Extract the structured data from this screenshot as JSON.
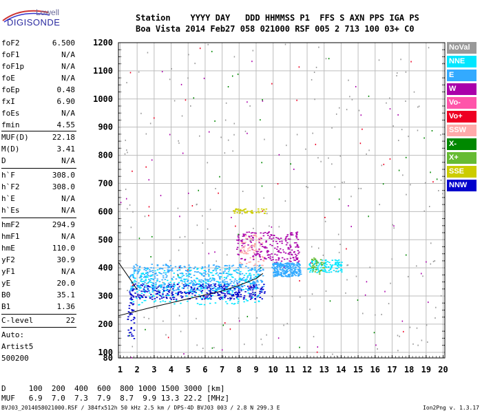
{
  "logo": {
    "top": "Lowell",
    "bottom": "DIGISONDE"
  },
  "header": {
    "line1": "Station    YYYY DAY   DDD HHMMSS P1  FFS S AXN PPS IGA PS",
    "line2": "Boa Vista 2014 Feb27 058 021000 RSF 005 2 713 100 03+ C0"
  },
  "params": [
    {
      "name": "foF2",
      "value": "6.500"
    },
    {
      "name": "foF1",
      "value": "N/A"
    },
    {
      "name": "foF1p",
      "value": "N/A"
    },
    {
      "name": "foE",
      "value": "N/A"
    },
    {
      "name": "foEp",
      "value": "0.48"
    },
    {
      "name": "fxI",
      "value": "6.90"
    },
    {
      "name": "foEs",
      "value": "N/A"
    },
    {
      "name": "fmin",
      "value": "4.55"
    },
    {
      "name": "MUF(D)",
      "value": "22.18"
    },
    {
      "name": "M(D)",
      "value": "3.41"
    },
    {
      "name": "D",
      "value": "N/A"
    },
    {
      "name": "h`F",
      "value": "308.0"
    },
    {
      "name": "h`F2",
      "value": "308.0"
    },
    {
      "name": "h`E",
      "value": "N/A"
    },
    {
      "name": "h`Es",
      "value": "N/A"
    },
    {
      "name": "hmF2",
      "value": "294.9"
    },
    {
      "name": "hmF1",
      "value": "N/A"
    },
    {
      "name": "hmE",
      "value": "110.0"
    },
    {
      "name": "yF2",
      "value": "30.9"
    },
    {
      "name": "yF1",
      "value": "N/A"
    },
    {
      "name": "yE",
      "value": "20.0"
    },
    {
      "name": "B0",
      "value": "35.1"
    },
    {
      "name": "B1",
      "value": "1.36"
    },
    {
      "name": "C-level",
      "value": "22"
    }
  ],
  "auto_lines": [
    "Auto:",
    "Artist5",
    "500200"
  ],
  "legend": [
    {
      "label": "NoVal",
      "color": "#999999"
    },
    {
      "label": "NNE",
      "color": "#00e6ff"
    },
    {
      "label": "E",
      "color": "#33aaff"
    },
    {
      "label": "W",
      "color": "#aa00aa"
    },
    {
      "label": "Vo-",
      "color": "#ff55aa"
    },
    {
      "label": "Vo+",
      "color": "#ee0022"
    },
    {
      "label": "SSW",
      "color": "#ffaaaa"
    },
    {
      "label": "X-",
      "color": "#008800"
    },
    {
      "label": "X+",
      "color": "#66bb33"
    },
    {
      "label": "SSE",
      "color": "#cccc00"
    },
    {
      "label": "NNW",
      "color": "#0000cc"
    }
  ],
  "muf_table": {
    "d_line": "D     100  200  400  600  800 1000 1500 3000 [km]",
    "muf_line": "MUF   6.9  7.0  7.3  7.9  8.7  9.9 13.3 22.2 [MHz]"
  },
  "footer": {
    "left": "BVJ03_2014058021000.RSF / 384fx512h 50 kHz 2.5 km / DPS-4D BVJ03 003 / 2.8 N 299.3 E",
    "right": "Ion2Png v. 1.3.17"
  },
  "chart_data": {
    "type": "scatter",
    "x_ticks": [
      "1",
      "2",
      "3",
      "4",
      "5",
      "6",
      "7",
      "8",
      "9",
      "10",
      "11",
      "12",
      "13",
      "14",
      "15",
      "16",
      "17",
      "18",
      "19",
      "20"
    ],
    "y_ticks": [
      "80",
      "100",
      "200",
      "300",
      "400",
      "500",
      "600",
      "700",
      "800",
      "900",
      "1000",
      "1100",
      "1200"
    ],
    "xlim": [
      0.9,
      20.1
    ],
    "ylim": [
      80,
      1200
    ],
    "xlabel": "",
    "ylabel": "",
    "grid": true,
    "trace_lines": [
      {
        "name": "",
        "points": [
          [
            0.9,
            230
          ],
          [
            3.0,
            262
          ],
          [
            5.0,
            290
          ],
          [
            7.0,
            318
          ],
          [
            8.0,
            338
          ],
          [
            9.0,
            362
          ],
          [
            9.4,
            380
          ]
        ]
      },
      {
        "name": "",
        "points": [
          [
            0.9,
            420
          ],
          [
            1.3,
            385
          ],
          [
            1.7,
            350
          ],
          [
            2.0,
            322
          ]
        ]
      }
    ],
    "clusters": [
      {
        "series": "NNW",
        "x": [
          1.5,
          9.5
        ],
        "y": [
          290,
          345
        ],
        "count": 380
      },
      {
        "series": "E",
        "x": [
          1.5,
          9.4
        ],
        "y": [
          320,
          415
        ],
        "count": 520
      },
      {
        "series": "NNE",
        "x": [
          1.6,
          9.2
        ],
        "y": [
          270,
          400
        ],
        "count": 260
      },
      {
        "series": "W",
        "x": [
          7.8,
          11.5
        ],
        "y": [
          420,
          530
        ],
        "count": 220
      },
      {
        "series": "SSW",
        "x": [
          8.0,
          9.4
        ],
        "y": [
          410,
          520
        ],
        "count": 70
      },
      {
        "series": "E",
        "x": [
          9.9,
          11.6
        ],
        "y": [
          370,
          420
        ],
        "count": 260
      },
      {
        "series": "NNE",
        "x": [
          12.0,
          14.0
        ],
        "y": [
          385,
          430
        ],
        "count": 120
      },
      {
        "series": "SSE",
        "x": [
          7.6,
          9.6
        ],
        "y": [
          595,
          612
        ],
        "count": 45
      },
      {
        "series": "X+",
        "x": [
          12.2,
          13.0
        ],
        "y": [
          380,
          440
        ],
        "count": 40
      },
      {
        "series": "NoVal",
        "x": [
          1.2,
          20.0
        ],
        "y": [
          80,
          1200
        ],
        "count": 220
      },
      {
        "series": "W",
        "x": [
          1.0,
          20.0
        ],
        "y": [
          80,
          1200
        ],
        "count": 50
      },
      {
        "series": "Vo+",
        "x": [
          1.0,
          20.0
        ],
        "y": [
          80,
          1200
        ],
        "count": 35
      },
      {
        "series": "X-",
        "x": [
          1.0,
          20.0
        ],
        "y": [
          80,
          1200
        ],
        "count": 40
      },
      {
        "series": "NNW",
        "x": [
          1.4,
          1.8
        ],
        "y": [
          150,
          300
        ],
        "count": 40
      }
    ]
  }
}
